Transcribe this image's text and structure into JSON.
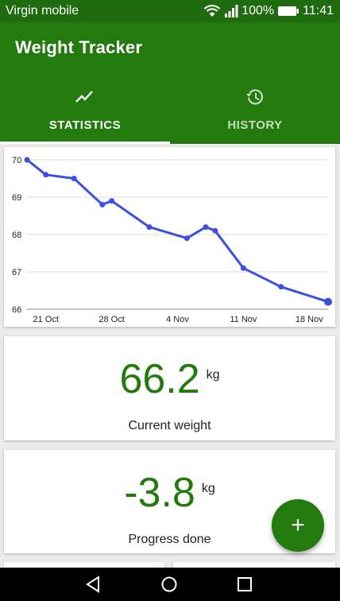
{
  "status_bar": {
    "carrier": "Virgin mobile",
    "battery": "100%",
    "time": "11:41"
  },
  "app_bar": {
    "title": "Weight Tracker",
    "tabs": [
      {
        "label": "STATISTICS",
        "icon": "trending-down-icon",
        "selected": true
      },
      {
        "label": "HISTORY",
        "icon": "history-icon",
        "selected": false
      }
    ]
  },
  "colors": {
    "primary": "#237a0d",
    "status_bar": "#1e6b10",
    "line": "#3c4fe0"
  },
  "chart_data": {
    "type": "line",
    "title": "",
    "xlabel": "",
    "ylabel": "",
    "x_ticks": [
      "21 Oct",
      "28 Oct",
      "4 Nov",
      "11 Nov",
      "18 Nov"
    ],
    "y_ticks": [
      "66",
      "67",
      "68",
      "69",
      "70"
    ],
    "ylim": [
      66,
      70
    ],
    "grid": true,
    "series": [
      {
        "points": [
          {
            "x": "2017-10-19",
            "y": 70.0
          },
          {
            "x": "2017-10-21",
            "y": 69.6
          },
          {
            "x": "2017-10-24",
            "y": 69.5
          },
          {
            "x": "2017-10-27",
            "y": 68.8
          },
          {
            "x": "2017-10-28",
            "y": 68.9
          },
          {
            "x": "2017-11-01",
            "y": 68.2
          },
          {
            "x": "2017-11-05",
            "y": 67.9
          },
          {
            "x": "2017-11-07",
            "y": 68.2
          },
          {
            "x": "2017-11-08",
            "y": 68.1
          },
          {
            "x": "2017-11-11",
            "y": 67.1
          },
          {
            "x": "2017-11-15",
            "y": 66.6
          },
          {
            "x": "2017-11-20",
            "y": 66.2
          }
        ]
      }
    ]
  },
  "current_weight": {
    "value": "66.2",
    "unit": "kg",
    "label": "Current weight"
  },
  "progress": {
    "value": "-3.8",
    "unit": "kg",
    "label": "Progress done"
  },
  "fab": {
    "icon": "plus-icon",
    "symbol": "+"
  },
  "nav_bar": {
    "buttons": [
      "back-icon",
      "home-icon",
      "recents-icon"
    ]
  }
}
